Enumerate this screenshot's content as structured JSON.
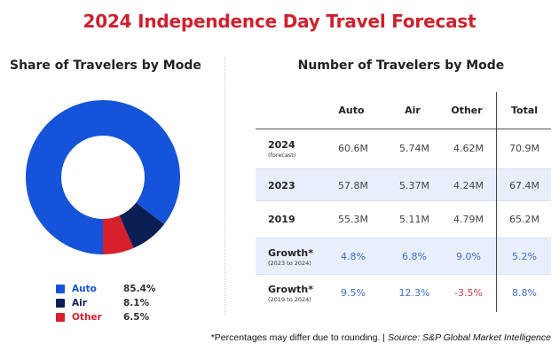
{
  "title": "2024 Independence Day Travel Forecast",
  "left_panel": {
    "title": "Share of Travelers by Mode"
  },
  "right_panel": {
    "title": "Number of Travelers by Mode"
  },
  "colors": {
    "title": "#d0202e",
    "auto": "#1553d8",
    "air": "#0b1f54",
    "other": "#d7202c",
    "band": "#e8effb",
    "growth_positive": "#3d6fd6",
    "growth_negative": "#d0404a"
  },
  "chart_data": [
    {
      "type": "pie",
      "title": "Share of Travelers by Mode",
      "donut": true,
      "legend_position": "bottom",
      "categories": [
        "Auto",
        "Air",
        "Other"
      ],
      "values": [
        85.4,
        8.1,
        6.5
      ],
      "value_labels": [
        "85.4%",
        "8.1%",
        "6.5%"
      ],
      "colors": [
        "#1553d8",
        "#0b1f54",
        "#d7202c"
      ]
    },
    {
      "type": "table",
      "title": "Number of Travelers by Mode",
      "columns": [
        "",
        "Auto",
        "Air",
        "Other",
        "Total"
      ],
      "rows": [
        {
          "label": "2024",
          "sublabel": "(forecast)",
          "values": [
            "60.6M",
            "5.74M",
            "4.62M",
            "70.9M"
          ],
          "kind": "count",
          "band": false
        },
        {
          "label": "2023",
          "sublabel": "",
          "values": [
            "57.8M",
            "5.37M",
            "4.24M",
            "67.4M"
          ],
          "kind": "count",
          "band": true
        },
        {
          "label": "2019",
          "sublabel": "",
          "values": [
            "55.3M",
            "5.11M",
            "4.79M",
            "65.2M"
          ],
          "kind": "count",
          "band": false
        },
        {
          "label": "Growth*",
          "sublabel": "(2023 to 2024)",
          "values": [
            "4.8%",
            "6.8%",
            "9.0%",
            "5.2%"
          ],
          "kind": "growth",
          "band": true
        },
        {
          "label": "Growth*",
          "sublabel": "(2019 to 2024)",
          "values": [
            "9.5%",
            "12.3%",
            "-3.5%",
            "8.8%"
          ],
          "kind": "growth",
          "band": false
        }
      ]
    }
  ],
  "footer": {
    "note": "*Percentages may differ due to rounding. | ",
    "source": "Source: S&P Global Market Intelligence"
  }
}
